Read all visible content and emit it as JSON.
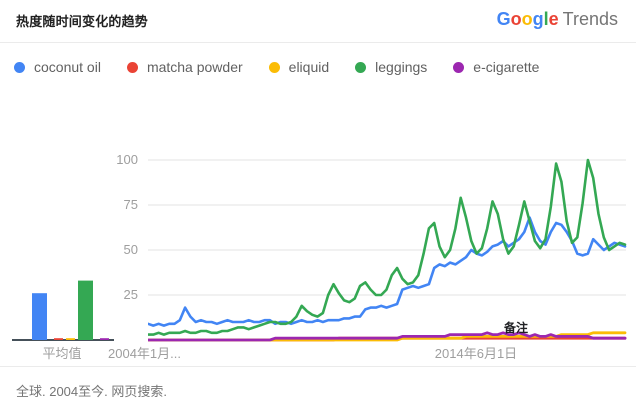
{
  "header": {
    "title": "热度随时间变化的趋势",
    "brand": {
      "letters": [
        {
          "ch": "G",
          "color": "#4285F4"
        },
        {
          "ch": "o",
          "color": "#EA4335"
        },
        {
          "ch": "o",
          "color": "#FBBC05"
        },
        {
          "ch": "g",
          "color": "#4285F4"
        },
        {
          "ch": "l",
          "color": "#34A853"
        },
        {
          "ch": "e",
          "color": "#EA4335"
        }
      ],
      "suffix": "Trends"
    }
  },
  "legend": {
    "items": [
      {
        "label": "coconut oil",
        "color": "#4285F4"
      },
      {
        "label": "matcha powder",
        "color": "#EA4335"
      },
      {
        "label": "eliquid",
        "color": "#FBBC05"
      },
      {
        "label": "leggings",
        "color": "#34A853"
      },
      {
        "label": "e-cigarette",
        "color": "#9C27B0"
      }
    ]
  },
  "axis": {
    "y_ticks": [
      "100",
      "75",
      "50",
      "25"
    ],
    "avg_label": "平均值",
    "x_label_start": "2004年1月...",
    "x_label_mid": "2014年6月1日",
    "annotation": "备注"
  },
  "chart_data": {
    "type": "line",
    "title": "热度随时间变化的趋势",
    "x_range": [
      "2004-01",
      "2019-01"
    ],
    "sampling": "bimonthly",
    "x_tick_labels": [
      "2004年1月...",
      "2014年6月1日"
    ],
    "ylabel": "",
    "ylim": [
      0,
      100
    ],
    "y_ticks": [
      25,
      50,
      75,
      100
    ],
    "grid": true,
    "legend_position": "top",
    "averages_label": "平均值",
    "annotation": {
      "text": "备注",
      "x_year": 2016.5,
      "y": 5
    },
    "series": [
      {
        "name": "coconut oil",
        "color": "#4285F4",
        "average": 26,
        "values": [
          9,
          8,
          9,
          8,
          9,
          9,
          11,
          18,
          13,
          10,
          11,
          10,
          10,
          9,
          10,
          11,
          10,
          10,
          10,
          11,
          10,
          10,
          11,
          11,
          9,
          10,
          10,
          9,
          10,
          11,
          10,
          10,
          11,
          10,
          11,
          11,
          11,
          12,
          12,
          13,
          13,
          17,
          18,
          18,
          19,
          18,
          19,
          20,
          28,
          29,
          30,
          29,
          30,
          31,
          40,
          42,
          41,
          43,
          42,
          44,
          46,
          50,
          48,
          47,
          49,
          52,
          53,
          55,
          52,
          54,
          56,
          60,
          68,
          60,
          55,
          53,
          60,
          65,
          64,
          60,
          55,
          48,
          47,
          48,
          56,
          53,
          50,
          52,
          54,
          53,
          52
        ]
      },
      {
        "name": "matcha powder",
        "color": "#EA4335",
        "average": 1,
        "values": [
          0,
          0,
          0,
          0,
          0,
          0,
          0,
          0,
          0,
          0,
          0,
          0,
          0,
          0,
          0,
          0,
          0,
          0,
          0,
          0,
          0,
          0,
          0,
          0,
          0,
          0,
          0,
          0,
          0,
          0,
          0,
          0,
          0,
          0,
          0,
          0,
          1,
          1,
          1,
          1,
          1,
          1,
          1,
          1,
          1,
          1,
          1,
          1,
          1,
          1,
          1,
          1,
          1,
          1,
          1,
          1,
          1,
          1,
          1,
          1,
          1,
          1,
          1,
          1,
          1,
          1,
          1,
          1,
          1,
          1,
          1,
          1,
          1,
          1,
          1,
          1,
          1,
          1,
          1,
          1,
          1,
          1,
          1,
          1,
          1,
          1,
          1,
          1,
          1,
          1,
          1
        ]
      },
      {
        "name": "eliquid",
        "color": "#FBBC05",
        "average": 1,
        "values": [
          0,
          0,
          0,
          0,
          0,
          0,
          0,
          0,
          0,
          0,
          0,
          0,
          0,
          0,
          0,
          0,
          0,
          0,
          0,
          0,
          0,
          0,
          0,
          0,
          0,
          0,
          0,
          0,
          0,
          0,
          0,
          0,
          0,
          0,
          0,
          0,
          0,
          0,
          0,
          0,
          0,
          0,
          0,
          0,
          0,
          0,
          0,
          0,
          1,
          1,
          1,
          1,
          1,
          1,
          1,
          1,
          1,
          1,
          1,
          1,
          2,
          2,
          2,
          2,
          2,
          2,
          2,
          2,
          2,
          2,
          2,
          2,
          2,
          2,
          2,
          2,
          2,
          2,
          3,
          3,
          3,
          3,
          3,
          3,
          4,
          4,
          4,
          4,
          4,
          4,
          4
        ]
      },
      {
        "name": "leggings",
        "color": "#34A853",
        "average": 33,
        "values": [
          3,
          3,
          4,
          3,
          4,
          4,
          4,
          5,
          4,
          4,
          5,
          5,
          4,
          4,
          5,
          5,
          6,
          7,
          7,
          6,
          7,
          8,
          9,
          10,
          10,
          9,
          9,
          10,
          13,
          19,
          16,
          14,
          13,
          15,
          25,
          31,
          26,
          22,
          21,
          23,
          30,
          32,
          28,
          25,
          25,
          28,
          36,
          40,
          34,
          31,
          32,
          36,
          48,
          62,
          65,
          52,
          46,
          50,
          62,
          79,
          68,
          55,
          48,
          51,
          62,
          77,
          70,
          56,
          48,
          52,
          64,
          77,
          66,
          55,
          51,
          56,
          74,
          98,
          88,
          66,
          54,
          57,
          76,
          100,
          90,
          70,
          57,
          50,
          52,
          54,
          53
        ]
      },
      {
        "name": "e-cigarette",
        "color": "#9C27B0",
        "average": 1,
        "values": [
          0,
          0,
          0,
          0,
          0,
          0,
          0,
          0,
          0,
          0,
          0,
          0,
          0,
          0,
          0,
          0,
          0,
          0,
          0,
          0,
          0,
          0,
          0,
          0,
          1,
          1,
          1,
          1,
          1,
          1,
          1,
          1,
          1,
          1,
          1,
          1,
          1,
          1,
          1,
          1,
          1,
          1,
          1,
          1,
          1,
          1,
          1,
          1,
          2,
          2,
          2,
          2,
          2,
          2,
          2,
          2,
          2,
          3,
          3,
          3,
          3,
          3,
          3,
          3,
          4,
          3,
          3,
          4,
          3,
          3,
          4,
          3,
          2,
          3,
          2,
          2,
          3,
          2,
          2,
          2,
          2,
          2,
          2,
          2,
          1,
          1,
          1,
          1,
          1,
          1,
          1
        ]
      }
    ]
  },
  "footer": {
    "text": "全球. 2004至今. 网页搜索."
  }
}
